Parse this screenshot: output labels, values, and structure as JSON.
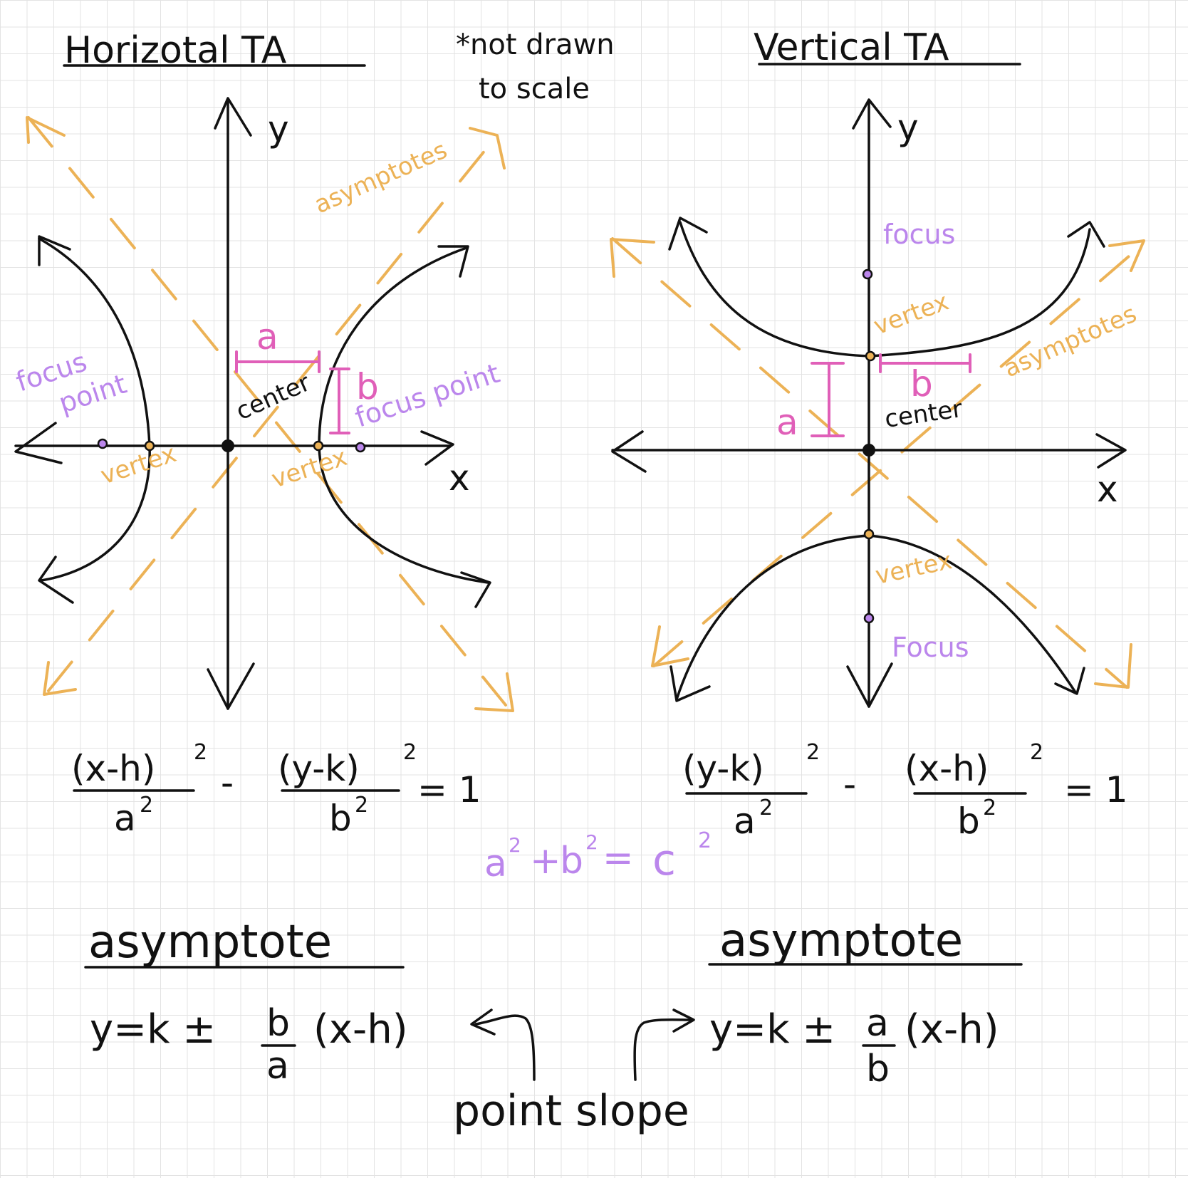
{
  "titles": {
    "horizontal": "Horizotal TA",
    "vertical": "Vertical TA",
    "note_line1": "*not drawn",
    "note_line2": "to scale"
  },
  "axes": {
    "x": "x",
    "y": "y"
  },
  "horizontal_graph": {
    "asymptotes_label": "asymptotes",
    "focus_left_line1": "focus",
    "focus_left_line2": "point",
    "focus_right": "focus point",
    "vertex_left": "vertex",
    "vertex_right": "vertex",
    "center": "center",
    "a_label": "a",
    "b_label": "b"
  },
  "vertical_graph": {
    "asymptotes_label": "asymptotes",
    "focus_top": "focus",
    "focus_bottom": "Focus",
    "vertex_top": "vertex",
    "vertex_bottom": "vertex",
    "center": "center",
    "a_label": "a",
    "b_label": "b"
  },
  "equations": {
    "horizontal": {
      "num1": "(x-h)",
      "den1": "a",
      "num2": "(y-k)",
      "den2": "b",
      "exp": "2",
      "minus": "-",
      "rhs": "= 1"
    },
    "vertical": {
      "num1": "(y-k)",
      "den1": "a",
      "num2": "(x-h)",
      "den2": "b",
      "exp": "2",
      "minus": "-",
      "rhs": "= 1"
    },
    "pythagorean": {
      "a": "a",
      "plus": "+",
      "b": "b",
      "eq": "=",
      "c": "c",
      "exp": "2"
    }
  },
  "asymptote_formulas": {
    "heading": "asymptote",
    "horizontal": {
      "prefix": "y=k ±",
      "num": "b",
      "den": "a",
      "suffix": "(x-h)"
    },
    "vertical": {
      "prefix": "y=k ±",
      "num": "a",
      "den": "b",
      "suffix": "(x-h)"
    },
    "point_slope": "point slope"
  },
  "colors": {
    "ink": "#111111",
    "orange": "#ecb256",
    "magenta": "#e05fb8",
    "purple": "#bb86ec",
    "grid": "#e3e3e3",
    "paper": "#ffffff"
  }
}
